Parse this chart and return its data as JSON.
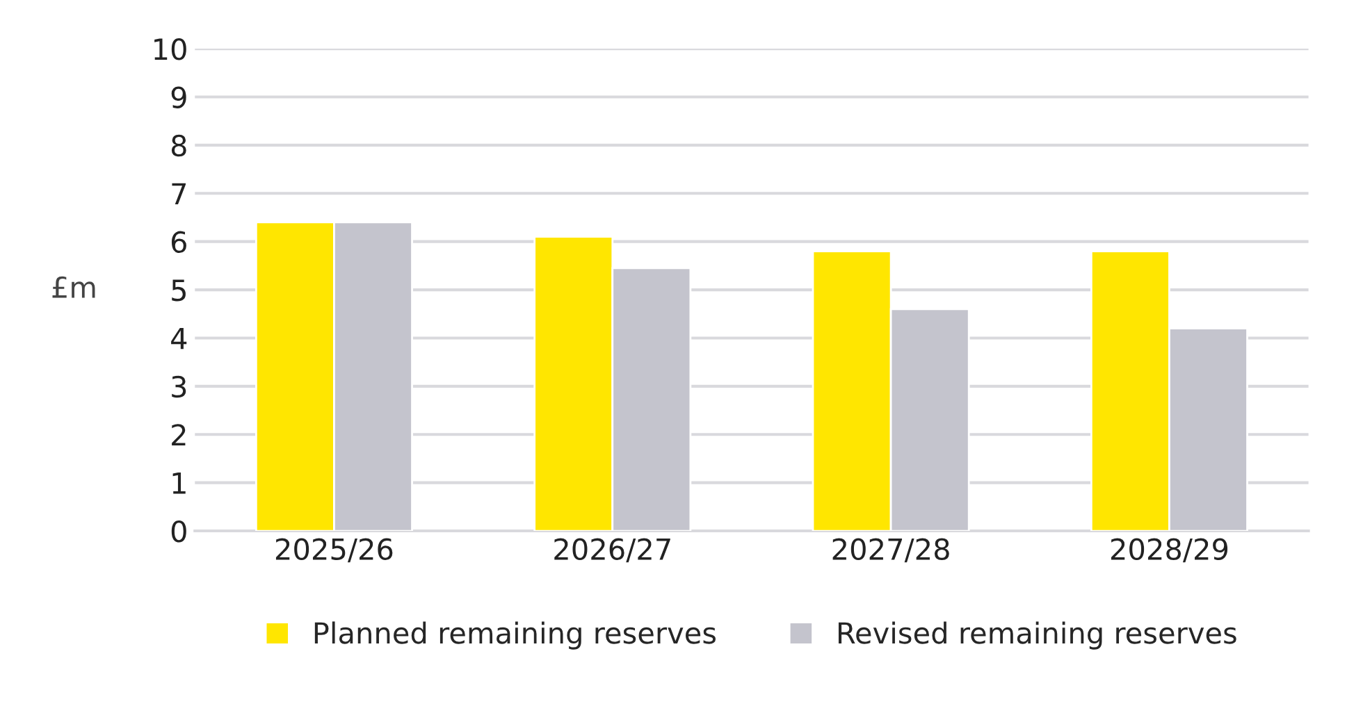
{
  "chart_data": {
    "type": "bar",
    "ylabel": "£m",
    "categories": [
      "2025/26",
      "2026/27",
      "2027/28",
      "2028/29"
    ],
    "series": [
      {
        "name": "Planned remaining reserves",
        "color": "#ffe600",
        "values": [
          6.4,
          6.1,
          5.8,
          5.8
        ]
      },
      {
        "name": "Revised remaining reserves",
        "color": "#c4c4cd",
        "values": [
          6.4,
          5.45,
          4.6,
          4.2
        ]
      }
    ],
    "ylim": [
      0,
      10
    ],
    "yticks": [
      0,
      1,
      2,
      3,
      4,
      5,
      6,
      7,
      8,
      9,
      10
    ],
    "grid": "y",
    "legend": "bottom"
  }
}
